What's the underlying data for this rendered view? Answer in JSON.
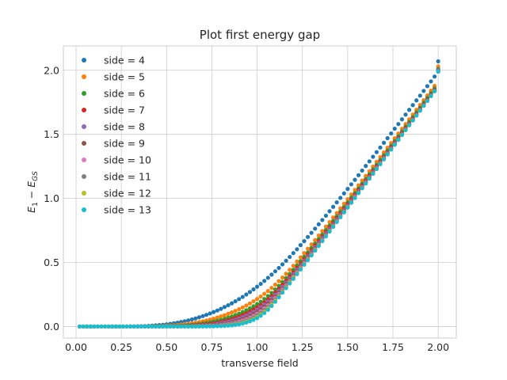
{
  "chart_data": {
    "type": "scatter",
    "title": "Plot first energy gap",
    "xlabel": "transverse field",
    "ylabel": "E_1 − E_GS",
    "xlim": [
      -0.07,
      2.1
    ],
    "ylim": [
      -0.09,
      2.19
    ],
    "xticks": [
      "0.00",
      "0.25",
      "0.50",
      "0.75",
      "1.00",
      "1.25",
      "1.50",
      "1.75",
      "2.00"
    ],
    "yticks": [
      "0.0",
      "0.5",
      "1.0",
      "1.5",
      "2.0"
    ],
    "grid": true,
    "legend_position": "top-left",
    "x": [
      0.02,
      0.04,
      0.06,
      0.08,
      0.1,
      0.12,
      0.14,
      0.16,
      0.18,
      0.2,
      0.22,
      0.24,
      0.26,
      0.28,
      0.3,
      0.32,
      0.34,
      0.36,
      0.38,
      0.4,
      0.42,
      0.44,
      0.46,
      0.48,
      0.5,
      0.52,
      0.54,
      0.56,
      0.58,
      0.6,
      0.62,
      0.64,
      0.66,
      0.68,
      0.7,
      0.72,
      0.74,
      0.76,
      0.78,
      0.8,
      0.82,
      0.84,
      0.86,
      0.88,
      0.9,
      0.92,
      0.94,
      0.96,
      0.98,
      1.0,
      1.02,
      1.04,
      1.06,
      1.08,
      1.1,
      1.12,
      1.14,
      1.16,
      1.18,
      1.2,
      1.22,
      1.24,
      1.26,
      1.28,
      1.3,
      1.32,
      1.34,
      1.36,
      1.38,
      1.4,
      1.42,
      1.44,
      1.46,
      1.48,
      1.5,
      1.52,
      1.54,
      1.56,
      1.58,
      1.6,
      1.62,
      1.64,
      1.66,
      1.68,
      1.7,
      1.72,
      1.74,
      1.76,
      1.78,
      1.8,
      1.82,
      1.84,
      1.86,
      1.88,
      1.9,
      1.92,
      1.94,
      1.96,
      1.98,
      2.0
    ],
    "series": [
      {
        "name": "side = 4",
        "color": "#1f77b4",
        "values": [
          0.0,
          0.0,
          0.0,
          0.0,
          0.0,
          0.0,
          0.0,
          0.0,
          0.0,
          0.0,
          0.0,
          0.0,
          0.0,
          0.0,
          0.001,
          0.001,
          0.002,
          0.003,
          0.004,
          0.005,
          0.007,
          0.009,
          0.011,
          0.014,
          0.017,
          0.021,
          0.025,
          0.03,
          0.035,
          0.041,
          0.048,
          0.055,
          0.063,
          0.072,
          0.081,
          0.091,
          0.102,
          0.113,
          0.125,
          0.138,
          0.152,
          0.166,
          0.181,
          0.197,
          0.214,
          0.231,
          0.25,
          0.269,
          0.29,
          0.311,
          0.333,
          0.356,
          0.38,
          0.405,
          0.431,
          0.457,
          0.485,
          0.513,
          0.543,
          0.573,
          0.603,
          0.635,
          0.666,
          0.699,
          0.731,
          0.764,
          0.798,
          0.831,
          0.865,
          0.9,
          0.934,
          0.969,
          1.004,
          1.039,
          1.074,
          1.11,
          1.145,
          1.181,
          1.217,
          1.253,
          1.289,
          1.325,
          1.361,
          1.397,
          1.434,
          1.47,
          1.507,
          1.544,
          1.58,
          1.617,
          1.654,
          1.691,
          1.728,
          1.765,
          1.802,
          1.839,
          1.876,
          1.913,
          1.951,
          2.07
        ]
      },
      {
        "name": "side = 5",
        "color": "#ff7f0e",
        "values": [
          0.0,
          0.0,
          0.0,
          0.0,
          0.0,
          0.0,
          0.0,
          0.0,
          0.0,
          0.0,
          0.0,
          0.0,
          0.0,
          0.0,
          0.0,
          0.0,
          0.0,
          0.001,
          0.001,
          0.002,
          0.002,
          0.003,
          0.004,
          0.005,
          0.006,
          0.008,
          0.01,
          0.012,
          0.015,
          0.018,
          0.021,
          0.025,
          0.03,
          0.035,
          0.041,
          0.047,
          0.054,
          0.061,
          0.07,
          0.079,
          0.088,
          0.099,
          0.11,
          0.122,
          0.135,
          0.149,
          0.164,
          0.18,
          0.197,
          0.215,
          0.234,
          0.255,
          0.277,
          0.301,
          0.327,
          0.354,
          0.382,
          0.412,
          0.443,
          0.474,
          0.507,
          0.54,
          0.573,
          0.607,
          0.641,
          0.675,
          0.71,
          0.745,
          0.78,
          0.815,
          0.851,
          0.886,
          0.922,
          0.958,
          0.994,
          1.03,
          1.066,
          1.102,
          1.139,
          1.175,
          1.212,
          1.248,
          1.285,
          1.322,
          1.358,
          1.395,
          1.432,
          1.469,
          1.506,
          1.543,
          1.58,
          1.617,
          1.654,
          1.692,
          1.729,
          1.766,
          1.803,
          1.841,
          1.878,
          2.03
        ]
      },
      {
        "name": "side = 6",
        "color": "#2ca02c",
        "values": [
          0.0,
          0.0,
          0.0,
          0.0,
          0.0,
          0.0,
          0.0,
          0.0,
          0.0,
          0.0,
          0.0,
          0.0,
          0.0,
          0.0,
          0.0,
          0.0,
          0.0,
          0.0,
          0.0,
          0.001,
          0.001,
          0.001,
          0.002,
          0.002,
          0.003,
          0.004,
          0.005,
          0.006,
          0.008,
          0.009,
          0.011,
          0.014,
          0.017,
          0.02,
          0.024,
          0.028,
          0.033,
          0.039,
          0.045,
          0.052,
          0.06,
          0.069,
          0.078,
          0.089,
          0.1,
          0.113,
          0.127,
          0.142,
          0.158,
          0.175,
          0.194,
          0.215,
          0.238,
          0.262,
          0.289,
          0.317,
          0.347,
          0.378,
          0.41,
          0.443,
          0.476,
          0.51,
          0.544,
          0.578,
          0.613,
          0.648,
          0.683,
          0.718,
          0.754,
          0.789,
          0.825,
          0.861,
          0.897,
          0.933,
          0.969,
          1.006,
          1.042,
          1.079,
          1.115,
          1.152,
          1.189,
          1.226,
          1.263,
          1.3,
          1.337,
          1.374,
          1.411,
          1.448,
          1.485,
          1.522,
          1.56,
          1.597,
          1.634,
          1.672,
          1.709,
          1.746,
          1.784,
          1.821,
          1.859,
          2.01
        ]
      },
      {
        "name": "side = 7",
        "color": "#d62728",
        "values": [
          0.0,
          0.0,
          0.0,
          0.0,
          0.0,
          0.0,
          0.0,
          0.0,
          0.0,
          0.0,
          0.0,
          0.0,
          0.0,
          0.0,
          0.0,
          0.0,
          0.0,
          0.0,
          0.0,
          0.0,
          0.0,
          0.001,
          0.001,
          0.001,
          0.001,
          0.002,
          0.002,
          0.003,
          0.004,
          0.005,
          0.006,
          0.008,
          0.01,
          0.012,
          0.015,
          0.018,
          0.021,
          0.026,
          0.031,
          0.036,
          0.043,
          0.05,
          0.058,
          0.068,
          0.078,
          0.09,
          0.103,
          0.117,
          0.133,
          0.15,
          0.169,
          0.19,
          0.213,
          0.238,
          0.266,
          0.295,
          0.326,
          0.358,
          0.391,
          0.424,
          0.458,
          0.492,
          0.527,
          0.561,
          0.596,
          0.632,
          0.667,
          0.703,
          0.738,
          0.774,
          0.81,
          0.846,
          0.883,
          0.919,
          0.956,
          0.992,
          1.029,
          1.066,
          1.103,
          1.14,
          1.177,
          1.214,
          1.251,
          1.288,
          1.325,
          1.362,
          1.4,
          1.437,
          1.474,
          1.512,
          1.549,
          1.586,
          1.624,
          1.661,
          1.699,
          1.736,
          1.774,
          1.811,
          1.849,
          2.0
        ]
      },
      {
        "name": "side = 8",
        "color": "#9467bd",
        "values": [
          0.0,
          0.0,
          0.0,
          0.0,
          0.0,
          0.0,
          0.0,
          0.0,
          0.0,
          0.0,
          0.0,
          0.0,
          0.0,
          0.0,
          0.0,
          0.0,
          0.0,
          0.0,
          0.0,
          0.0,
          0.0,
          0.0,
          0.0,
          0.0,
          0.001,
          0.001,
          0.001,
          0.002,
          0.002,
          0.003,
          0.003,
          0.004,
          0.006,
          0.007,
          0.009,
          0.011,
          0.014,
          0.017,
          0.021,
          0.026,
          0.031,
          0.037,
          0.044,
          0.052,
          0.062,
          0.073,
          0.085,
          0.099,
          0.114,
          0.131,
          0.15,
          0.171,
          0.194,
          0.22,
          0.248,
          0.278,
          0.31,
          0.343,
          0.376,
          0.41,
          0.444,
          0.479,
          0.513,
          0.548,
          0.584,
          0.619,
          0.655,
          0.691,
          0.727,
          0.763,
          0.8,
          0.836,
          0.873,
          0.909,
          0.946,
          0.983,
          1.02,
          1.057,
          1.094,
          1.131,
          1.168,
          1.206,
          1.243,
          1.28,
          1.318,
          1.355,
          1.392,
          1.43,
          1.467,
          1.505,
          1.542,
          1.58,
          1.617,
          1.655,
          1.692,
          1.73,
          1.767,
          1.805,
          1.843,
          2.0
        ]
      },
      {
        "name": "side = 9",
        "color": "#8c564b",
        "values": [
          0.0,
          0.0,
          0.0,
          0.0,
          0.0,
          0.0,
          0.0,
          0.0,
          0.0,
          0.0,
          0.0,
          0.0,
          0.0,
          0.0,
          0.0,
          0.0,
          0.0,
          0.0,
          0.0,
          0.0,
          0.0,
          0.0,
          0.0,
          0.0,
          0.0,
          0.0,
          0.001,
          0.001,
          0.001,
          0.001,
          0.002,
          0.002,
          0.003,
          0.004,
          0.005,
          0.007,
          0.009,
          0.011,
          0.014,
          0.018,
          0.022,
          0.027,
          0.033,
          0.041,
          0.049,
          0.059,
          0.07,
          0.083,
          0.098,
          0.115,
          0.134,
          0.155,
          0.179,
          0.205,
          0.234,
          0.265,
          0.298,
          0.331,
          0.365,
          0.399,
          0.434,
          0.469,
          0.504,
          0.539,
          0.575,
          0.611,
          0.647,
          0.683,
          0.719,
          0.756,
          0.793,
          0.829,
          0.866,
          0.903,
          0.94,
          0.977,
          1.014,
          1.052,
          1.089,
          1.126,
          1.164,
          1.201,
          1.238,
          1.276,
          1.313,
          1.351,
          1.388,
          1.426,
          1.464,
          1.501,
          1.539,
          1.576,
          1.614,
          1.652,
          1.689,
          1.727,
          1.765,
          1.802,
          1.84,
          1.99
        ]
      },
      {
        "name": "side = 10",
        "color": "#e377c2",
        "values": [
          0.0,
          0.0,
          0.0,
          0.0,
          0.0,
          0.0,
          0.0,
          0.0,
          0.0,
          0.0,
          0.0,
          0.0,
          0.0,
          0.0,
          0.0,
          0.0,
          0.0,
          0.0,
          0.0,
          0.0,
          0.0,
          0.0,
          0.0,
          0.0,
          0.0,
          0.0,
          0.0,
          0.0,
          0.001,
          0.001,
          0.001,
          0.001,
          0.002,
          0.002,
          0.003,
          0.004,
          0.006,
          0.007,
          0.009,
          0.012,
          0.015,
          0.019,
          0.024,
          0.031,
          0.038,
          0.047,
          0.057,
          0.069,
          0.084,
          0.1,
          0.119,
          0.141,
          0.165,
          0.192,
          0.222,
          0.254,
          0.287,
          0.321,
          0.355,
          0.39,
          0.425,
          0.46,
          0.496,
          0.531,
          0.567,
          0.603,
          0.64,
          0.676,
          0.713,
          0.749,
          0.786,
          0.823,
          0.86,
          0.897,
          0.934,
          0.972,
          1.009,
          1.046,
          1.084,
          1.121,
          1.159,
          1.196,
          1.234,
          1.271,
          1.309,
          1.346,
          1.384,
          1.422,
          1.459,
          1.497,
          1.535,
          1.573,
          1.61,
          1.648,
          1.686,
          1.723,
          1.761,
          1.799,
          1.837,
          1.99
        ]
      },
      {
        "name": "side = 11",
        "color": "#7f7f7f",
        "values": [
          0.0,
          0.0,
          0.0,
          0.0,
          0.0,
          0.0,
          0.0,
          0.0,
          0.0,
          0.0,
          0.0,
          0.0,
          0.0,
          0.0,
          0.0,
          0.0,
          0.0,
          0.0,
          0.0,
          0.0,
          0.0,
          0.0,
          0.0,
          0.0,
          0.0,
          0.0,
          0.0,
          0.0,
          0.0,
          0.0,
          0.001,
          0.001,
          0.001,
          0.001,
          0.002,
          0.003,
          0.003,
          0.005,
          0.006,
          0.008,
          0.01,
          0.014,
          0.018,
          0.023,
          0.029,
          0.037,
          0.046,
          0.058,
          0.071,
          0.087,
          0.106,
          0.128,
          0.153,
          0.181,
          0.211,
          0.244,
          0.278,
          0.313,
          0.348,
          0.383,
          0.419,
          0.454,
          0.49,
          0.526,
          0.562,
          0.599,
          0.635,
          0.672,
          0.709,
          0.746,
          0.783,
          0.82,
          0.857,
          0.894,
          0.931,
          0.969,
          1.006,
          1.044,
          1.081,
          1.119,
          1.157,
          1.194,
          1.232,
          1.269,
          1.307,
          1.345,
          1.383,
          1.42,
          1.458,
          1.496,
          1.534,
          1.572,
          1.609,
          1.647,
          1.685,
          1.723,
          1.761,
          1.799,
          1.837,
          1.99
        ]
      },
      {
        "name": "side = 12",
        "color": "#bcbd22",
        "values": [
          0.0,
          0.0,
          0.0,
          0.0,
          0.0,
          0.0,
          0.0,
          0.0,
          0.0,
          0.0,
          0.0,
          0.0,
          0.0,
          0.0,
          0.0,
          0.0,
          0.0,
          0.0,
          0.0,
          0.0,
          0.0,
          0.0,
          0.0,
          0.0,
          0.0,
          0.0,
          0.0,
          0.0,
          0.0,
          0.0,
          0.0,
          0.0,
          0.001,
          0.001,
          0.001,
          0.002,
          0.002,
          0.003,
          0.004,
          0.005,
          0.007,
          0.01,
          0.013,
          0.017,
          0.022,
          0.029,
          0.037,
          0.048,
          0.06,
          0.076,
          0.094,
          0.116,
          0.142,
          0.171,
          0.202,
          0.236,
          0.271,
          0.306,
          0.342,
          0.378,
          0.414,
          0.45,
          0.486,
          0.523,
          0.559,
          0.596,
          0.632,
          0.669,
          0.706,
          0.743,
          0.78,
          0.817,
          0.855,
          0.892,
          0.93,
          0.967,
          1.005,
          1.042,
          1.08,
          1.117,
          1.155,
          1.193,
          1.23,
          1.268,
          1.306,
          1.344,
          1.382,
          1.419,
          1.457,
          1.495,
          1.533,
          1.571,
          1.609,
          1.647,
          1.685,
          1.723,
          1.761,
          1.799,
          1.837,
          1.99
        ]
      },
      {
        "name": "side = 13",
        "color": "#17becf",
        "values": [
          0.0,
          0.0,
          0.0,
          0.0,
          0.0,
          0.0,
          0.0,
          0.0,
          0.0,
          0.0,
          0.0,
          0.0,
          0.0,
          0.0,
          0.0,
          0.0,
          0.0,
          0.0,
          0.0,
          0.0,
          0.0,
          0.0,
          0.0,
          0.0,
          0.0,
          0.0,
          0.0,
          0.0,
          0.0,
          0.0,
          0.0,
          0.0,
          0.0,
          0.0,
          0.001,
          0.001,
          0.002,
          0.002,
          0.003,
          0.004,
          0.005,
          0.007,
          0.009,
          0.013,
          0.017,
          0.023,
          0.031,
          0.04,
          0.052,
          0.066,
          0.084,
          0.105,
          0.131,
          0.16,
          0.193,
          0.228,
          0.264,
          0.3,
          0.336,
          0.372,
          0.409,
          0.445,
          0.482,
          0.518,
          0.555,
          0.592,
          0.629,
          0.667,
          0.704,
          0.741,
          0.778,
          0.816,
          0.853,
          0.891,
          0.928,
          0.966,
          1.003,
          1.041,
          1.079,
          1.116,
          1.154,
          1.192,
          1.229,
          1.267,
          1.305,
          1.343,
          1.381,
          1.419,
          1.457,
          1.495,
          1.533,
          1.571,
          1.609,
          1.647,
          1.685,
          1.723,
          1.761,
          1.799,
          1.837,
          1.99
        ]
      }
    ]
  }
}
